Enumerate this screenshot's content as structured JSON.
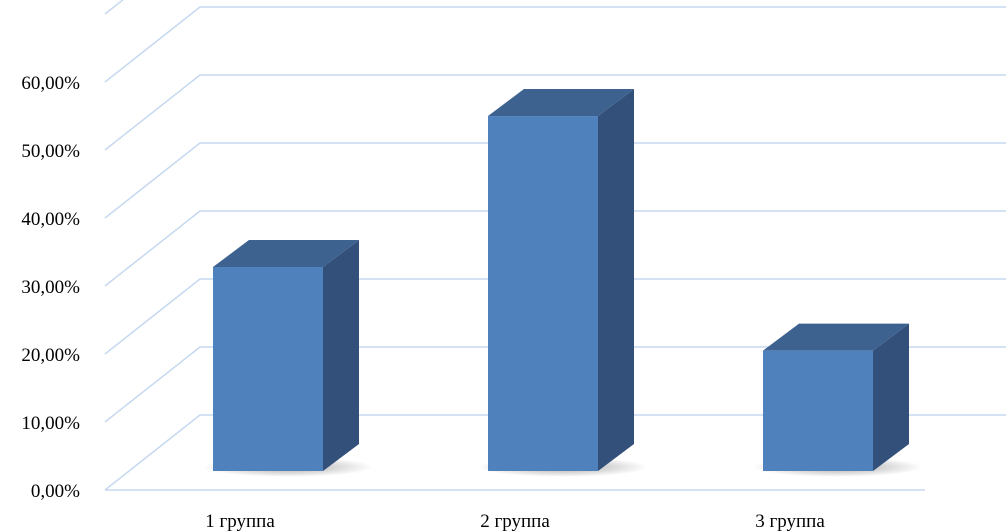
{
  "chart_data": {
    "type": "bar",
    "title": "",
    "xlabel": "",
    "ylabel": "",
    "categories": [
      "1 группа",
      "2 группа",
      "3 группа"
    ],
    "series": [
      {
        "values": [
          30.0,
          52.2,
          17.7
        ]
      }
    ],
    "ylim": [
      0,
      70
    ],
    "yticks": [
      "0,00%",
      "10,00%",
      "20,00%",
      "30,00%",
      "40,00%",
      "50,00%",
      "60,00%"
    ],
    "grid": true,
    "style": "3d-column",
    "colors": {
      "front": "#4f81bd",
      "side": "#33507a",
      "top": "#3d628f",
      "grid": "#c6d9f0"
    }
  }
}
